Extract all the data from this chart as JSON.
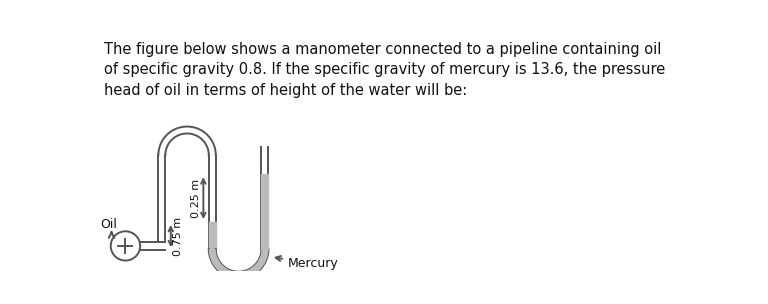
{
  "text_title": "The figure below shows a manometer connected to a pipeline containing oil\nof specific gravity 0.8. If the specific gravity of mercury is 13.6, the pressure\nhead of oil in terms of height of the water will be:",
  "label_oil": "Oil",
  "label_mercury": "Mercury",
  "label_075": "0.75 m",
  "label_025": "0.25 m",
  "bg_color": "#ffffff",
  "line_color": "#555555",
  "fill_color": "#bbbbbb",
  "text_color": "#111111",
  "title_fontsize": 10.5,
  "label_fontsize": 9,
  "lw": 1.4,
  "vwall": 0.045,
  "pipe_wall": 0.055
}
